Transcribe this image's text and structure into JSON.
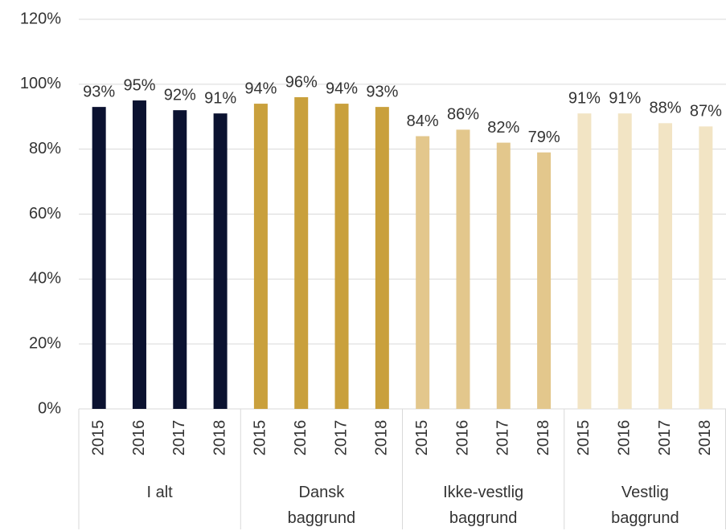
{
  "chart_data": {
    "type": "bar",
    "categories": [
      "2015",
      "2016",
      "2017",
      "2018"
    ],
    "series": [
      {
        "name": "I alt",
        "color": "#0b1230",
        "values": [
          93,
          95,
          92,
          91
        ],
        "value_labels": [
          "93%",
          "95%",
          "92%",
          "91%"
        ]
      },
      {
        "name": "Dansk baggrund",
        "color": "#c9a03c",
        "values": [
          94,
          96,
          94,
          93
        ],
        "value_labels": [
          "94%",
          "96%",
          "94%",
          "93%"
        ]
      },
      {
        "name": "Ikke-vestlig baggrund",
        "color": "#e3c78c",
        "values": [
          84,
          86,
          82,
          79
        ],
        "value_labels": [
          "84%",
          "86%",
          "82%",
          "79%"
        ]
      },
      {
        "name": "Vestlig baggrund",
        "color": "#f2e4c4",
        "values": [
          91,
          91,
          88,
          87
        ],
        "value_labels": [
          "91%",
          "91%",
          "88%",
          "87%"
        ]
      }
    ],
    "ylim": [
      0,
      120
    ],
    "yticks": [
      {
        "value": 0,
        "label": "0%"
      },
      {
        "value": 20,
        "label": "20%"
      },
      {
        "value": 40,
        "label": "40%"
      },
      {
        "value": 60,
        "label": "60%"
      },
      {
        "value": 80,
        "label": "80%"
      },
      {
        "value": 100,
        "label": "100%"
      },
      {
        "value": 120,
        "label": "120%"
      }
    ],
    "grid": true
  }
}
